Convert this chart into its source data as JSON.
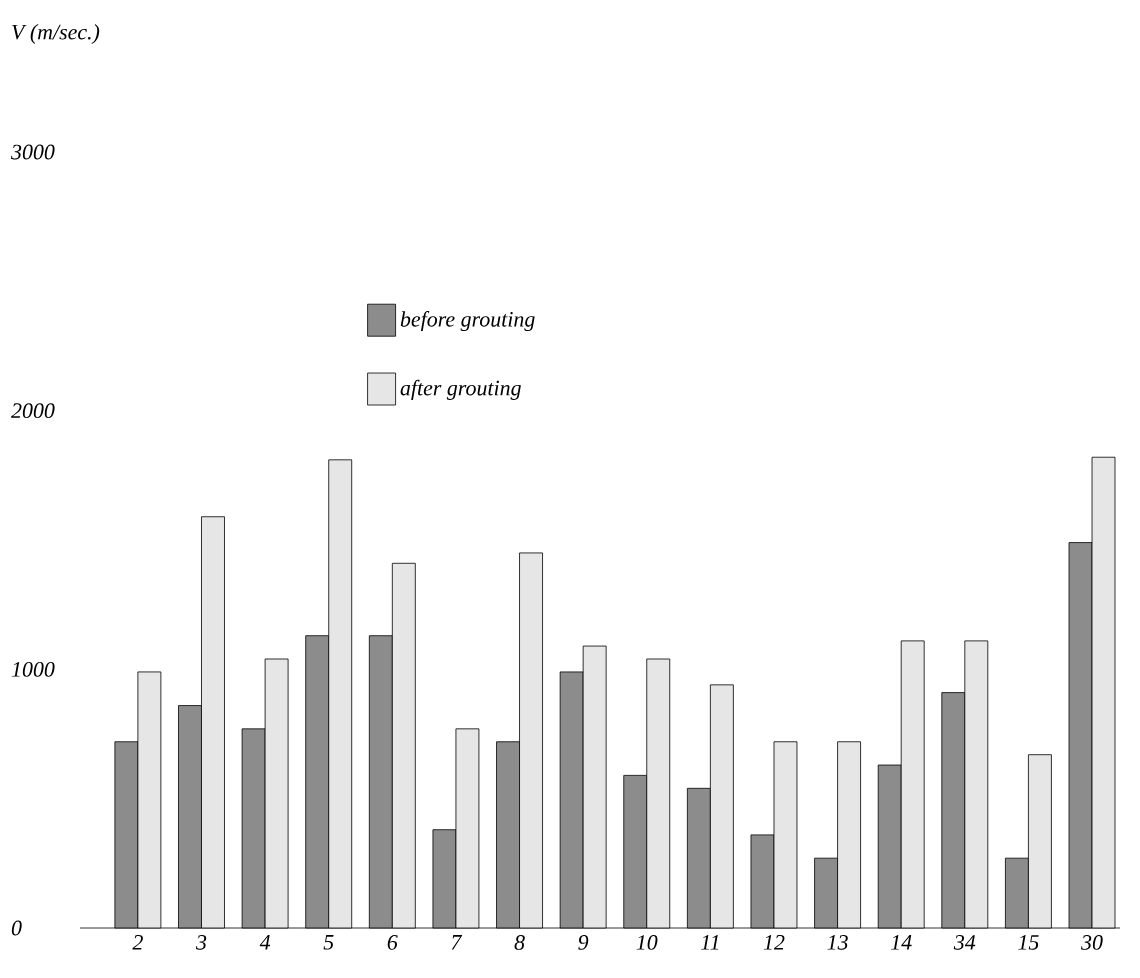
{
  "chart_data": {
    "type": "bar",
    "ylabel": "V (m/sec.)",
    "categories": [
      "2",
      "3",
      "4",
      "5",
      "6",
      "7",
      "8",
      "9",
      "10",
      "11",
      "12",
      "13",
      "14",
      "34",
      "15",
      "30"
    ],
    "series": [
      {
        "name": "before grouting",
        "color": "#8c8c8c",
        "values": [
          720,
          860,
          770,
          1130,
          1130,
          380,
          720,
          990,
          590,
          540,
          360,
          270,
          630,
          910,
          270,
          1490
        ]
      },
      {
        "name": "after grouting",
        "color": "#e6e6e6",
        "values": [
          990,
          1590,
          1040,
          1810,
          1410,
          770,
          1450,
          1090,
          1040,
          940,
          720,
          720,
          1110,
          1110,
          670,
          1820
        ]
      }
    ],
    "ylim": [
      0,
      3000
    ],
    "yticks": [
      0,
      1000,
      2000,
      3000
    ],
    "legend": "top"
  }
}
